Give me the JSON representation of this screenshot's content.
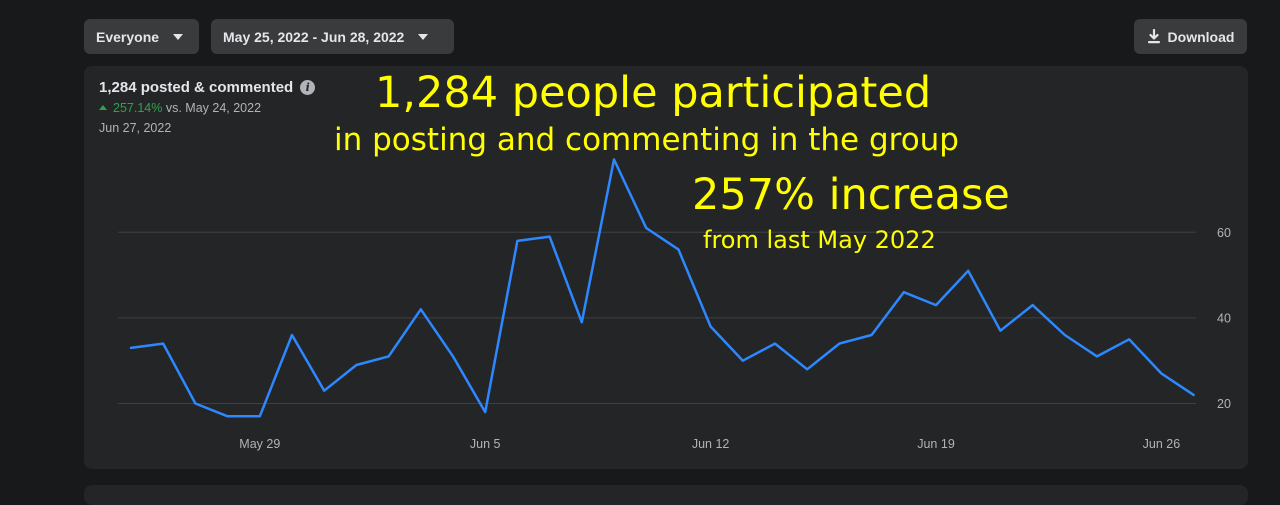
{
  "filters": {
    "audience": "Everyone",
    "date_range": "May 25, 2022 - Jun 28, 2022",
    "download_label": "Download"
  },
  "metric": {
    "title": "1,284 posted & commented",
    "info_glyph": "i",
    "change_pct": "257.14%",
    "change_text": "vs. May 24, 2022",
    "hover_date": "Jun 27, 2022"
  },
  "annotations": {
    "line1": "1,284 people participated",
    "line2": "in posting and commenting in the group",
    "line3": "257% increase",
    "line4": "from last May 2022"
  },
  "colors": {
    "line": "#2d88ff",
    "positive": "#31a24c",
    "annotation": "#ffff00"
  },
  "chart_data": {
    "type": "line",
    "x": [
      "May 25",
      "May 26",
      "May 27",
      "May 28",
      "May 29",
      "May 30",
      "May 31",
      "Jun 1",
      "Jun 2",
      "Jun 3",
      "Jun 4",
      "Jun 5",
      "Jun 6",
      "Jun 7",
      "Jun 8",
      "Jun 9",
      "Jun 10",
      "Jun 11",
      "Jun 12",
      "Jun 13",
      "Jun 14",
      "Jun 15",
      "Jun 16",
      "Jun 17",
      "Jun 18",
      "Jun 19",
      "Jun 20",
      "Jun 21",
      "Jun 22",
      "Jun 23",
      "Jun 24",
      "Jun 25",
      "Jun 26",
      "Jun 27"
    ],
    "values": [
      33,
      34,
      20,
      17,
      17,
      36,
      23,
      29,
      31,
      42,
      31,
      18,
      58,
      59,
      39,
      77,
      61,
      56,
      38,
      30,
      34,
      28,
      34,
      36,
      46,
      43,
      51,
      37,
      43,
      36,
      31,
      35,
      27,
      22
    ],
    "x_tick_labels": [
      "May 29",
      "Jun 5",
      "Jun 12",
      "Jun 19",
      "Jun 26"
    ],
    "y_ticks": [
      20,
      40,
      60
    ],
    "ylim": [
      20,
      60
    ],
    "grid": true,
    "y_axis_side": "right"
  }
}
